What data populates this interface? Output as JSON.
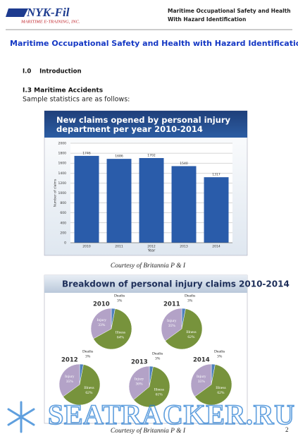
{
  "header": {
    "logo": {
      "name": "NYK-Fil",
      "tagline": "MARITIME E-TRAINING, INC."
    },
    "title_lines": [
      "Maritime Occupational Safety and Health",
      "With Hazard Identification"
    ]
  },
  "body": {
    "title": "Maritime Occupational Safety and Health with Hazard Identification",
    "section": "I.0    Introduction",
    "subsection": "I.3 Maritime Accidents",
    "intro": "Sample statistics are as follows:",
    "captions": [
      "Courtesy of Britannia P & I",
      "Courtesy of Britannia P & I"
    ]
  },
  "footer": {
    "page": "2"
  },
  "watermark": "SEATRACKER.RU",
  "chart_data": [
    {
      "type": "bar",
      "title": "New claims opened by personal injury department per year 2010-2014",
      "categories": [
        "2010",
        "2011",
        "2012",
        "2013",
        "2014"
      ],
      "values": [
        1746,
        1686,
        1702,
        1540,
        1317
      ],
      "color": "#2a5caa",
      "xlabel": "Year",
      "ylabel": "Number of claims",
      "ylim": [
        0,
        2000
      ],
      "yticks": [
        0,
        200,
        400,
        600,
        800,
        1000,
        1200,
        1400,
        1600,
        1800,
        2000
      ],
      "grid": true
    },
    {
      "type": "pie",
      "title": "Breakdown of personal injury claims 2010-2014",
      "colors": [
        "#4f81bd",
        "#77933c",
        "#b3a2c7"
      ],
      "pies": [
        {
          "title": "2010",
          "categories": [
            "Deaths",
            "Illness",
            "Injury"
          ],
          "values": [
            3,
            64,
            33
          ],
          "value_labels": [
            "3%",
            "64%",
            "33%"
          ]
        },
        {
          "title": "2011",
          "categories": [
            "Deaths",
            "Illness",
            "Injury"
          ],
          "values": [
            3,
            62,
            35
          ],
          "value_labels": [
            "3%",
            "62%",
            "35%"
          ]
        },
        {
          "title": "2012",
          "categories": [
            "Deaths",
            "Illness",
            "Injury"
          ],
          "values": [
            3,
            62,
            35
          ],
          "value_labels": [
            "3%",
            "62%",
            "35%"
          ]
        },
        {
          "title": "2013",
          "categories": [
            "Deaths",
            "Illness",
            "Injury"
          ],
          "values": [
            3,
            61,
            36
          ],
          "value_labels": [
            "3%",
            "61%",
            "36%"
          ]
        },
        {
          "title": "2014",
          "categories": [
            "Deaths",
            "Illness",
            "Injury"
          ],
          "values": [
            3,
            62,
            35
          ],
          "value_labels": [
            "3%",
            "62%",
            "35%"
          ]
        }
      ]
    }
  ]
}
